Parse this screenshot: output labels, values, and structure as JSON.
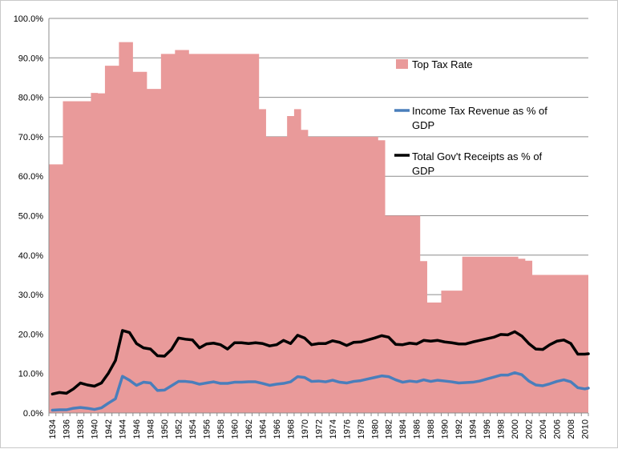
{
  "chart_data": {
    "type": "area",
    "title": "",
    "xlabel": "",
    "ylabel": "",
    "ylim": [
      0,
      100
    ],
    "y_tick_labels": [
      "0.0%",
      "10.0%",
      "20.0%",
      "30.0%",
      "40.0%",
      "50.0%",
      "60.0%",
      "70.0%",
      "80.0%",
      "90.0%",
      "100.0%"
    ],
    "grid": true,
    "legend_position": "right",
    "x_range": [
      1934,
      2011
    ],
    "x_tick_labels": [
      "1934",
      "1936",
      "1938",
      "1940",
      "1942",
      "1944",
      "1946",
      "1948",
      "1950",
      "1952",
      "1954",
      "1956",
      "1958",
      "1960",
      "1962",
      "1964",
      "1966",
      "1968",
      "1970",
      "1972",
      "1974",
      "1976",
      "1978",
      "1980",
      "1982",
      "1984",
      "1986",
      "1988",
      "1990",
      "1992",
      "1994",
      "1996",
      "1998",
      "2000",
      "2002",
      "2004",
      "2006",
      "2008",
      "2010"
    ],
    "series": [
      {
        "name": "Top Tax Rate",
        "type": "area",
        "color": "#e99a9a",
        "x": [
          1934,
          1935,
          1936,
          1937,
          1938,
          1939,
          1940,
          1941,
          1942,
          1943,
          1944,
          1945,
          1946,
          1947,
          1948,
          1949,
          1950,
          1951,
          1952,
          1953,
          1954,
          1955,
          1956,
          1957,
          1958,
          1959,
          1960,
          1961,
          1962,
          1963,
          1964,
          1965,
          1966,
          1967,
          1968,
          1969,
          1970,
          1971,
          1972,
          1973,
          1974,
          1975,
          1976,
          1977,
          1978,
          1979,
          1980,
          1981,
          1982,
          1983,
          1984,
          1985,
          1986,
          1987,
          1988,
          1989,
          1990,
          1991,
          1992,
          1993,
          1994,
          1995,
          1996,
          1997,
          1998,
          1999,
          2000,
          2001,
          2002,
          2003,
          2004,
          2005,
          2006,
          2007,
          2008,
          2009,
          2010,
          2011
        ],
        "values": [
          63,
          63,
          79,
          79,
          79,
          79,
          81.1,
          81,
          88,
          88,
          94,
          94,
          86.45,
          86.45,
          82.13,
          82.13,
          91,
          91,
          92,
          92,
          91,
          91,
          91,
          91,
          91,
          91,
          91,
          91,
          91,
          91,
          77,
          70,
          70,
          70,
          75.25,
          77,
          71.75,
          70,
          70,
          70,
          70,
          70,
          70,
          70,
          70,
          70,
          70,
          69.13,
          50,
          50,
          50,
          50,
          50,
          38.5,
          28,
          28,
          31,
          31,
          31,
          39.6,
          39.6,
          39.6,
          39.6,
          39.6,
          39.6,
          39.6,
          39.6,
          39.1,
          38.6,
          35,
          35,
          35,
          35,
          35,
          35,
          35,
          35,
          35
        ]
      },
      {
        "name": "Income Tax Revenue as % of GDP",
        "type": "line",
        "color": "#4a7ebb",
        "x": [
          1934,
          1935,
          1936,
          1937,
          1938,
          1939,
          1940,
          1941,
          1942,
          1943,
          1944,
          1945,
          1946,
          1947,
          1948,
          1949,
          1950,
          1951,
          1952,
          1953,
          1954,
          1955,
          1956,
          1957,
          1958,
          1959,
          1960,
          1961,
          1962,
          1963,
          1964,
          1965,
          1966,
          1967,
          1968,
          1969,
          1970,
          1971,
          1972,
          1973,
          1974,
          1975,
          1976,
          1977,
          1978,
          1979,
          1980,
          1981,
          1982,
          1983,
          1984,
          1985,
          1986,
          1987,
          1988,
          1989,
          1990,
          1991,
          1992,
          1993,
          1994,
          1995,
          1996,
          1997,
          1998,
          1999,
          2000,
          2001,
          2002,
          2003,
          2004,
          2005,
          2006,
          2007,
          2008,
          2009,
          2010,
          2011
        ],
        "values": [
          0.7,
          0.8,
          0.8,
          1.2,
          1.4,
          1.2,
          0.9,
          1.3,
          2.5,
          3.6,
          9.3,
          8.3,
          7.0,
          7.8,
          7.6,
          5.7,
          5.8,
          6.9,
          8.0,
          8.0,
          7.8,
          7.3,
          7.6,
          7.9,
          7.5,
          7.5,
          7.8,
          7.8,
          7.9,
          7.9,
          7.5,
          7.0,
          7.3,
          7.5,
          7.9,
          9.2,
          9.0,
          8.0,
          8.1,
          7.9,
          8.3,
          7.8,
          7.6,
          8.0,
          8.2,
          8.6,
          9.0,
          9.4,
          9.2,
          8.4,
          7.8,
          8.1,
          7.9,
          8.4,
          8.0,
          8.3,
          8.1,
          7.9,
          7.6,
          7.7,
          7.8,
          8.1,
          8.6,
          9.1,
          9.6,
          9.6,
          10.2,
          9.7,
          8.1,
          7.1,
          6.9,
          7.4,
          8.0,
          8.4,
          7.9,
          6.4,
          6.1,
          6.3
        ]
      },
      {
        "name": "Total Gov't Receipts as % of GDP",
        "type": "line",
        "color": "#000000",
        "x": [
          1934,
          1935,
          1936,
          1937,
          1938,
          1939,
          1940,
          1941,
          1942,
          1943,
          1944,
          1945,
          1946,
          1947,
          1948,
          1949,
          1950,
          1951,
          1952,
          1953,
          1954,
          1955,
          1956,
          1957,
          1958,
          1959,
          1960,
          1961,
          1962,
          1963,
          1964,
          1965,
          1966,
          1967,
          1968,
          1969,
          1970,
          1971,
          1972,
          1973,
          1974,
          1975,
          1976,
          1977,
          1978,
          1979,
          1980,
          1981,
          1982,
          1983,
          1984,
          1985,
          1986,
          1987,
          1988,
          1989,
          1990,
          1991,
          1992,
          1993,
          1994,
          1995,
          1996,
          1997,
          1998,
          1999,
          2000,
          2001,
          2002,
          2003,
          2004,
          2005,
          2006,
          2007,
          2008,
          2009,
          2010,
          2011
        ],
        "values": [
          4.8,
          5.2,
          5.0,
          6.1,
          7.6,
          7.1,
          6.8,
          7.6,
          10.1,
          13.3,
          20.9,
          20.4,
          17.6,
          16.5,
          16.2,
          14.5,
          14.4,
          16.1,
          19.0,
          18.7,
          18.5,
          16.5,
          17.5,
          17.7,
          17.3,
          16.2,
          17.8,
          17.8,
          17.6,
          17.8,
          17.6,
          17.0,
          17.3,
          18.4,
          17.6,
          19.7,
          19.0,
          17.3,
          17.6,
          17.6,
          18.3,
          17.9,
          17.1,
          17.9,
          18.0,
          18.5,
          19.0,
          19.6,
          19.2,
          17.4,
          17.3,
          17.7,
          17.5,
          18.4,
          18.2,
          18.4,
          18.0,
          17.8,
          17.5,
          17.5,
          18.0,
          18.4,
          18.8,
          19.2,
          19.9,
          19.8,
          20.6,
          19.5,
          17.6,
          16.2,
          16.1,
          17.3,
          18.2,
          18.5,
          17.6,
          14.9,
          14.9,
          15.0
        ]
      }
    ]
  }
}
